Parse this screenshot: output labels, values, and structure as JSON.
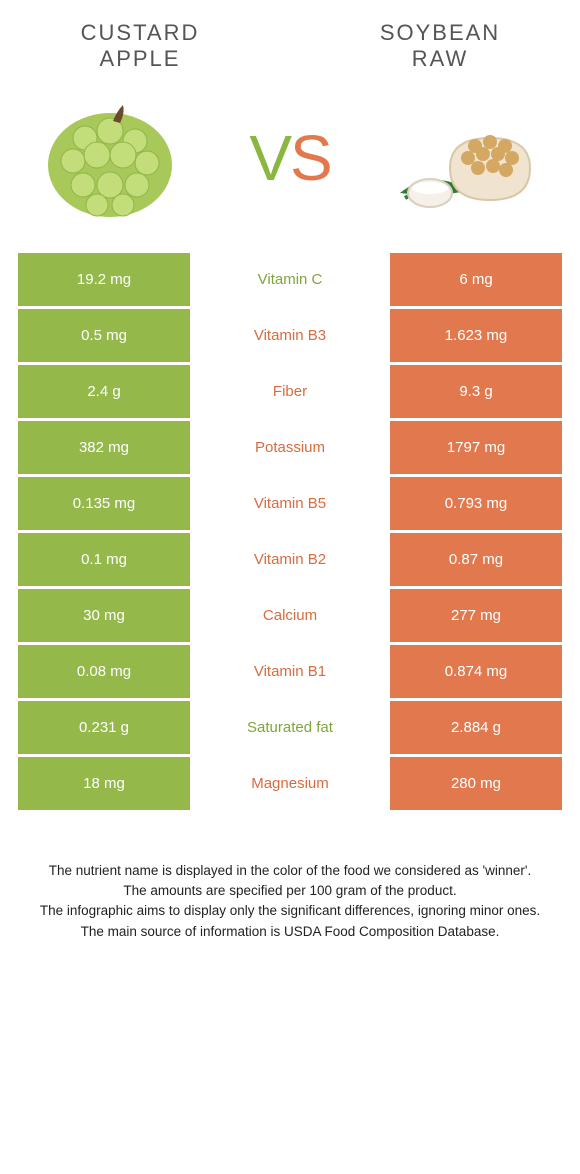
{
  "colors": {
    "left": "#94b94a",
    "right": "#e2794e",
    "left_text": "#7ca63a",
    "right_text": "#d96b3f",
    "row_gap": "#ffffff"
  },
  "header": {
    "left_line1": "CUSTARD",
    "left_line2": "APPLE",
    "right_line1": "SOYBEAN",
    "right_line2": "RAW",
    "vs_v": "V",
    "vs_s": "S"
  },
  "rows": [
    {
      "left": "19.2 mg",
      "label": "Vitamin C",
      "right": "6 mg",
      "winner": "left"
    },
    {
      "left": "0.5 mg",
      "label": "Vitamin B3",
      "right": "1.623 mg",
      "winner": "right"
    },
    {
      "left": "2.4 g",
      "label": "Fiber",
      "right": "9.3 g",
      "winner": "right"
    },
    {
      "left": "382 mg",
      "label": "Potassium",
      "right": "1797 mg",
      "winner": "right"
    },
    {
      "left": "0.135 mg",
      "label": "Vitamin B5",
      "right": "0.793 mg",
      "winner": "right"
    },
    {
      "left": "0.1 mg",
      "label": "Vitamin B2",
      "right": "0.87 mg",
      "winner": "right"
    },
    {
      "left": "30 mg",
      "label": "Calcium",
      "right": "277 mg",
      "winner": "right"
    },
    {
      "left": "0.08 mg",
      "label": "Vitamin B1",
      "right": "0.874 mg",
      "winner": "right"
    },
    {
      "left": "0.231 g",
      "label": "Saturated fat",
      "right": "2.884 g",
      "winner": "left"
    },
    {
      "left": "18 mg",
      "label": "Magnesium",
      "right": "280 mg",
      "winner": "right"
    }
  ],
  "footer": {
    "line1": "The nutrient name is displayed in the color of the food we considered as 'winner'.",
    "line2": "The amounts are specified per 100 gram of the product.",
    "line3": "The infographic aims to display only the significant differences, ignoring minor ones.",
    "line4": "The main source of information is USDA Food Composition Database."
  }
}
